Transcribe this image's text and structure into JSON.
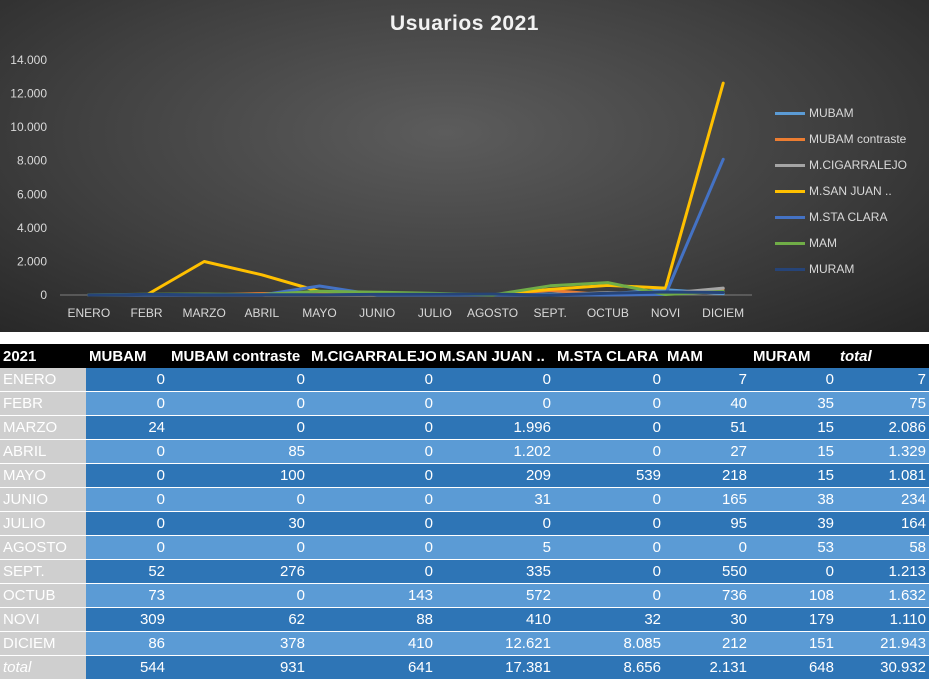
{
  "chart_data": {
    "type": "line",
    "title": "Usuarios 2021",
    "categories": [
      "ENERO",
      "FEBR",
      "MARZO",
      "ABRIL",
      "MAYO",
      "JUNIO",
      "JULIO",
      "AGOSTO",
      "SEPT.",
      "OCTUB",
      "NOVI",
      "DICIEM"
    ],
    "yticks": [
      "0",
      "2.000",
      "4.000",
      "6.000",
      "8.000",
      "10.000",
      "12.000",
      "14.000"
    ],
    "ylim": [
      0,
      14000
    ],
    "grid": false,
    "legend_position": "right",
    "series": [
      {
        "name": "MUBAM",
        "color": "#5b9bd5",
        "values": [
          0,
          0,
          24,
          0,
          0,
          0,
          0,
          0,
          52,
          73,
          309,
          86
        ]
      },
      {
        "name": "MUBAM contraste",
        "color": "#ed7d31",
        "values": [
          0,
          0,
          0,
          85,
          100,
          0,
          30,
          0,
          276,
          0,
          62,
          378
        ]
      },
      {
        "name": "M.CIGARRALEJO",
        "color": "#a5a5a5",
        "values": [
          0,
          0,
          0,
          0,
          0,
          0,
          0,
          0,
          0,
          143,
          88,
          410
        ]
      },
      {
        "name": "M.SAN JUAN ..",
        "color": "#ffc000",
        "values": [
          0,
          0,
          1996,
          1202,
          209,
          31,
          0,
          5,
          335,
          572,
          410,
          12621
        ]
      },
      {
        "name": "M.STA CLARA",
        "color": "#4472c4",
        "values": [
          0,
          0,
          0,
          0,
          539,
          0,
          0,
          0,
          0,
          0,
          32,
          8085
        ]
      },
      {
        "name": "MAM",
        "color": "#70ad47",
        "values": [
          7,
          40,
          51,
          27,
          218,
          165,
          95,
          0,
          550,
          736,
          30,
          212
        ]
      },
      {
        "name": "MURAM",
        "color": "#264478",
        "values": [
          0,
          35,
          15,
          15,
          15,
          38,
          39,
          53,
          0,
          108,
          179,
          151
        ]
      }
    ]
  },
  "table": {
    "headers": [
      "2021",
      "MUBAM",
      "MUBAM contraste",
      "M.CIGARRALEJO",
      "M.SAN JUAN ..",
      "M.STA CLARA",
      "MAM",
      "MURAM",
      "total"
    ],
    "rows": [
      [
        "ENERO",
        "0",
        "0",
        "0",
        "0",
        "0",
        "7",
        "0",
        "7"
      ],
      [
        "FEBR",
        "0",
        "0",
        "0",
        "0",
        "0",
        "40",
        "35",
        "75"
      ],
      [
        "MARZO",
        "24",
        "0",
        "0",
        "1.996",
        "0",
        "51",
        "15",
        "2.086"
      ],
      [
        "ABRIL",
        "0",
        "85",
        "0",
        "1.202",
        "0",
        "27",
        "15",
        "1.329"
      ],
      [
        "MAYO",
        "0",
        "100",
        "0",
        "209",
        "539",
        "218",
        "15",
        "1.081"
      ],
      [
        "JUNIO",
        "0",
        "0",
        "0",
        "31",
        "0",
        "165",
        "38",
        "234"
      ],
      [
        "JULIO",
        "0",
        "30",
        "0",
        "0",
        "0",
        "95",
        "39",
        "164"
      ],
      [
        "AGOSTO",
        "0",
        "0",
        "0",
        "5",
        "0",
        "0",
        "53",
        "58"
      ],
      [
        "SEPT.",
        "52",
        "276",
        "0",
        "335",
        "0",
        "550",
        "0",
        "1.213"
      ],
      [
        "OCTUB",
        "73",
        "0",
        "143",
        "572",
        "0",
        "736",
        "108",
        "1.632"
      ],
      [
        "NOVI",
        "309",
        "62",
        "88",
        "410",
        "32",
        "30",
        "179",
        "1.110"
      ],
      [
        "DICIEM",
        "86",
        "378",
        "410",
        "12.621",
        "8.085",
        "212",
        "151",
        "21.943"
      ]
    ],
    "total_row": [
      "total",
      "544",
      "931",
      "641",
      "17.381",
      "8.656",
      "2.131",
      "648",
      "30.932"
    ]
  }
}
